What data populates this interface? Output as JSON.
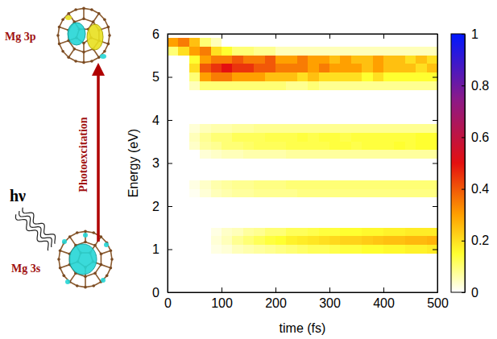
{
  "diagram": {
    "top_label": "Mg 3p",
    "bottom_label": "Mg 3s",
    "photon": "hν",
    "arrow_label": "Photoexcitation"
  },
  "chart_data": {
    "type": "heatmap",
    "x_label": "time (fs)",
    "y_label": "Energy (eV)",
    "xlim": [
      0,
      500
    ],
    "ylim": [
      0,
      6
    ],
    "xticks": [
      0,
      100,
      200,
      300,
      400,
      500
    ],
    "yticks": [
      0,
      1,
      2,
      3,
      4,
      5,
      6
    ],
    "x_bins": [
      0,
      20,
      40,
      60,
      80,
      100,
      120,
      140,
      160,
      180,
      200,
      220,
      240,
      260,
      280,
      300,
      320,
      340,
      360,
      380,
      400,
      420,
      440,
      460,
      480,
      500
    ],
    "rows": [
      {
        "y_edges": [
          5.7,
          5.9
        ],
        "values": [
          0.3,
          0.35,
          0.25,
          0.1,
          0.05,
          0,
          0,
          0,
          0,
          0,
          0,
          0,
          0,
          0,
          0,
          0,
          0,
          0,
          0,
          0,
          0,
          0,
          0,
          0,
          0
        ]
      },
      {
        "y_edges": [
          5.5,
          5.7
        ],
        "values": [
          0.1,
          0.2,
          0.3,
          0.35,
          0.2,
          0.15,
          0.1,
          0.1,
          0.08,
          0.08,
          0.05,
          0.05,
          0.05,
          0.05,
          0.05,
          0.05,
          0.05,
          0.05,
          0.05,
          0.05,
          0.05,
          0.05,
          0.05,
          0.05,
          0.05
        ]
      },
      {
        "y_edges": [
          5.3,
          5.5
        ],
        "values": [
          0,
          0,
          0.15,
          0.3,
          0.35,
          0.35,
          0.4,
          0.35,
          0.35,
          0.4,
          0.3,
          0.3,
          0.35,
          0.3,
          0.3,
          0.25,
          0.3,
          0.25,
          0.25,
          0.3,
          0.25,
          0.25,
          0.2,
          0.25,
          0.2
        ]
      },
      {
        "y_edges": [
          5.1,
          5.3
        ],
        "values": [
          0,
          0,
          0.2,
          0.4,
          0.45,
          0.5,
          0.45,
          0.45,
          0.4,
          0.4,
          0.35,
          0.35,
          0.35,
          0.3,
          0.35,
          0.3,
          0.3,
          0.3,
          0.25,
          0.3,
          0.25,
          0.25,
          0.25,
          0.2,
          0.25
        ]
      },
      {
        "y_edges": [
          4.9,
          5.1
        ],
        "values": [
          0,
          0,
          0.1,
          0.3,
          0.35,
          0.35,
          0.3,
          0.3,
          0.3,
          0.25,
          0.25,
          0.25,
          0.2,
          0.25,
          0.2,
          0.2,
          0.2,
          0.2,
          0.15,
          0.2,
          0.15,
          0.15,
          0.15,
          0.15,
          0.15
        ]
      },
      {
        "y_edges": [
          4.7,
          4.9
        ],
        "values": [
          0,
          0,
          0.05,
          0.1,
          0.1,
          0.1,
          0.1,
          0.1,
          0.1,
          0.1,
          0.1,
          0.08,
          0.08,
          0.1,
          0.08,
          0.08,
          0.08,
          0.08,
          0.08,
          0.08,
          0.08,
          0.08,
          0.08,
          0.08,
          0.08
        ]
      },
      {
        "y_edges": [
          3.7,
          3.9
        ],
        "values": [
          0,
          0,
          0.03,
          0.05,
          0.06,
          0.06,
          0.07,
          0.07,
          0.08,
          0.08,
          0.08,
          0.08,
          0.08,
          0.08,
          0.08,
          0.08,
          0.08,
          0.08,
          0.08,
          0.08,
          0.08,
          0.08,
          0.08,
          0.08,
          0.08
        ]
      },
      {
        "y_edges": [
          3.5,
          3.7
        ],
        "values": [
          0,
          0,
          0.05,
          0.08,
          0.1,
          0.1,
          0.12,
          0.12,
          0.12,
          0.13,
          0.13,
          0.13,
          0.14,
          0.13,
          0.14,
          0.14,
          0.13,
          0.14,
          0.14,
          0.14,
          0.14,
          0.14,
          0.14,
          0.15,
          0.15
        ]
      },
      {
        "y_edges": [
          3.3,
          3.5
        ],
        "values": [
          0,
          0,
          0.04,
          0.07,
          0.08,
          0.1,
          0.1,
          0.11,
          0.12,
          0.12,
          0.12,
          0.13,
          0.13,
          0.13,
          0.13,
          0.14,
          0.14,
          0.13,
          0.14,
          0.14,
          0.14,
          0.15,
          0.14,
          0.15,
          0.15
        ]
      },
      {
        "y_edges": [
          3.1,
          3.3
        ],
        "values": [
          0,
          0,
          0,
          0.03,
          0.04,
          0.05,
          0.05,
          0.06,
          0.06,
          0.06,
          0.06,
          0.07,
          0.07,
          0.07,
          0.07,
          0.07,
          0.07,
          0.07,
          0.07,
          0.07,
          0.07,
          0.07,
          0.07,
          0.07,
          0.07
        ]
      },
      {
        "y_edges": [
          2.4,
          2.6
        ],
        "values": [
          0,
          0,
          0.02,
          0.04,
          0.06,
          0.07,
          0.08,
          0.08,
          0.09,
          0.09,
          0.09,
          0.1,
          0.1,
          0.1,
          0.1,
          0.1,
          0.1,
          0.1,
          0.1,
          0.1,
          0.1,
          0.1,
          0.1,
          0.1,
          0.1
        ]
      },
      {
        "y_edges": [
          2.2,
          2.4
        ],
        "values": [
          0,
          0,
          0.01,
          0.03,
          0.05,
          0.06,
          0.07,
          0.07,
          0.08,
          0.08,
          0.08,
          0.08,
          0.09,
          0.09,
          0.09,
          0.09,
          0.09,
          0.09,
          0.09,
          0.09,
          0.09,
          0.09,
          0.09,
          0.09,
          0.09
        ]
      },
      {
        "y_edges": [
          1.3,
          1.5
        ],
        "values": [
          0,
          0,
          0,
          0,
          0.02,
          0.04,
          0.05,
          0.07,
          0.08,
          0.1,
          0.1,
          0.12,
          0.12,
          0.13,
          0.14,
          0.14,
          0.15,
          0.15,
          0.16,
          0.16,
          0.17,
          0.17,
          0.18,
          0.18,
          0.18
        ]
      },
      {
        "y_edges": [
          1.1,
          1.3
        ],
        "values": [
          0,
          0,
          0,
          0,
          0.03,
          0.05,
          0.08,
          0.1,
          0.12,
          0.14,
          0.15,
          0.17,
          0.18,
          0.19,
          0.2,
          0.21,
          0.22,
          0.22,
          0.23,
          0.24,
          0.25,
          0.25,
          0.26,
          0.26,
          0.27
        ]
      },
      {
        "y_edges": [
          0.9,
          1.1
        ],
        "values": [
          0,
          0,
          0,
          0,
          0.02,
          0.03,
          0.05,
          0.06,
          0.07,
          0.08,
          0.09,
          0.1,
          0.11,
          0.12,
          0.12,
          0.13,
          0.14,
          0.14,
          0.15,
          0.15,
          0.16,
          0.16,
          0.17,
          0.17,
          0.18
        ]
      }
    ],
    "colorbar": {
      "range": [
        0,
        1
      ],
      "ticks": [
        0,
        0.2,
        0.4,
        0.6,
        0.8,
        1
      ]
    }
  }
}
